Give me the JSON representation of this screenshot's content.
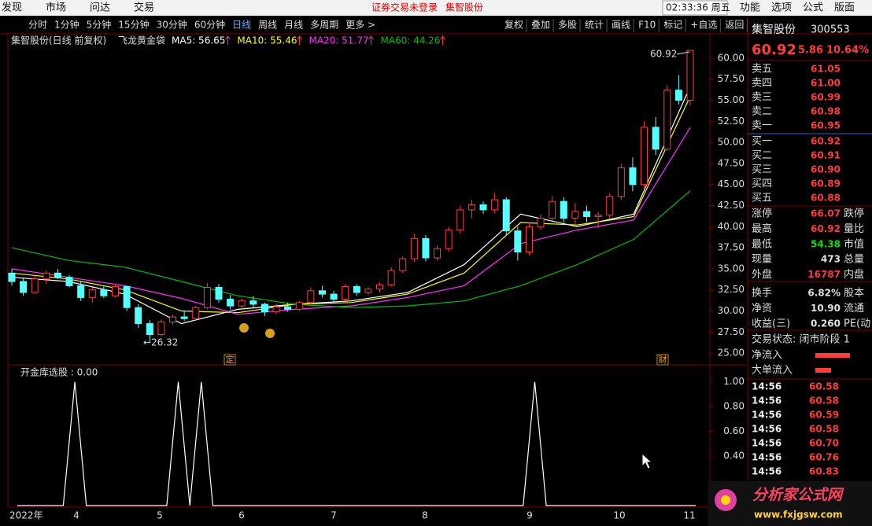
{
  "menu": {
    "left": [
      "发现",
      "市场",
      "问达",
      "交易"
    ],
    "notice": "证券交易未登录",
    "stock": "集智股份",
    "clock": "02:33:36 周五",
    "right": [
      "功能",
      "选项",
      "公式",
      "版面"
    ]
  },
  "toolbar": {
    "periods": [
      "分时",
      "1分钟",
      "5分钟",
      "15分钟",
      "30分钟",
      "60分钟",
      "日线",
      "周线",
      "月线",
      "多周期",
      "更多 >"
    ],
    "buttons": [
      "复权",
      "叠加",
      "多股",
      "统计",
      "画线",
      "F10",
      "标记",
      "+自选",
      "返回"
    ]
  },
  "chart_data": {
    "type": "candlestick",
    "title": "集智股份(日线 前复权)",
    "indicator": "飞龙黄金袋",
    "ylim": [
      23.8,
      61.3
    ],
    "yticks": [
      {
        "value": 60,
        "label": "60.00"
      },
      {
        "value": 57.5,
        "label": "57.50"
      },
      {
        "value": 55,
        "label": "55.00"
      },
      {
        "value": 52.5,
        "label": "52.50"
      },
      {
        "value": 50,
        "label": "50.00"
      },
      {
        "value": 47.5,
        "label": "47.50"
      },
      {
        "value": 45,
        "label": "45.00"
      },
      {
        "value": 42.5,
        "label": "42.50"
      },
      {
        "value": 40,
        "label": "40.00"
      },
      {
        "value": 37.5,
        "label": "37.50"
      },
      {
        "value": 35,
        "label": "35.00"
      },
      {
        "value": 32.5,
        "label": "32.50"
      },
      {
        "value": 30,
        "label": "30.00"
      },
      {
        "value": 27.5,
        "label": "27.50"
      },
      {
        "value": 25,
        "label": "25.00"
      }
    ],
    "x_labels": [
      "2022年",
      "4",
      "5",
      "6",
      "7",
      "8",
      "9",
      "10",
      "11"
    ],
    "up_color": "#ff3c3c",
    "down_color": "#54ffff",
    "candles": [
      [
        34.5,
        35.0,
        33.0,
        33.5
      ],
      [
        33.5,
        34.0,
        31.8,
        32.2
      ],
      [
        32.2,
        34.2,
        32.0,
        33.8
      ],
      [
        33.8,
        34.8,
        33.2,
        34.5
      ],
      [
        34.5,
        35.0,
        33.8,
        34.0
      ],
      [
        34.0,
        34.3,
        32.8,
        33.0
      ],
      [
        33.0,
        33.5,
        31.2,
        31.6
      ],
      [
        31.6,
        32.8,
        31.0,
        32.5
      ],
      [
        32.5,
        33.0,
        31.5,
        31.8
      ],
      [
        31.8,
        33.2,
        31.6,
        32.9
      ],
      [
        32.9,
        33.0,
        30.0,
        30.4
      ],
      [
        30.4,
        30.8,
        28.0,
        28.5
      ],
      [
        28.5,
        28.9,
        26.32,
        27.2
      ],
      [
        27.2,
        29.0,
        27.0,
        28.7
      ],
      [
        28.7,
        29.6,
        28.4,
        29.3
      ],
      [
        29.3,
        30.0,
        28.8,
        29.1
      ],
      [
        29.1,
        30.6,
        28.9,
        30.4
      ],
      [
        30.4,
        33.3,
        30.2,
        32.8
      ],
      [
        32.8,
        33.2,
        31.0,
        31.4
      ],
      [
        31.4,
        31.9,
        30.2,
        30.6
      ],
      [
        30.6,
        31.5,
        30.1,
        31.2
      ],
      [
        31.2,
        31.8,
        30.4,
        30.8
      ],
      [
        30.8,
        31.0,
        29.4,
        29.9
      ],
      [
        29.9,
        30.9,
        29.6,
        30.5
      ],
      [
        30.5,
        31.0,
        29.9,
        30.2
      ],
      [
        30.2,
        31.2,
        30.0,
        31.0
      ],
      [
        31.0,
        32.8,
        30.8,
        32.4
      ],
      [
        32.4,
        33.0,
        31.6,
        32.0
      ],
      [
        32.0,
        32.4,
        31.0,
        31.4
      ],
      [
        31.4,
        33.2,
        31.2,
        32.9
      ],
      [
        32.9,
        33.2,
        31.8,
        32.2
      ],
      [
        32.2,
        32.8,
        31.9,
        32.6
      ],
      [
        32.6,
        33.4,
        32.2,
        33.1
      ],
      [
        33.1,
        35.2,
        32.9,
        34.8
      ],
      [
        34.8,
        36.5,
        34.5,
        36.2
      ],
      [
        36.2,
        39.2,
        35.8,
        38.6
      ],
      [
        38.6,
        39.0,
        35.9,
        36.3
      ],
      [
        36.3,
        37.8,
        36.0,
        37.4
      ],
      [
        37.4,
        40.0,
        37.0,
        39.6
      ],
      [
        39.6,
        42.5,
        39.2,
        42.0
      ],
      [
        42.0,
        43.2,
        41.0,
        42.6
      ],
      [
        42.6,
        43.0,
        41.5,
        42.0
      ],
      [
        42.0,
        44.0,
        41.6,
        43.2
      ],
      [
        43.2,
        43.5,
        39.0,
        39.5
      ],
      [
        39.5,
        40.0,
        36.0,
        37.0
      ],
      [
        37.0,
        40.5,
        36.6,
        40.0
      ],
      [
        40.0,
        41.5,
        39.6,
        41.0
      ],
      [
        41.0,
        43.6,
        40.7,
        43.0
      ],
      [
        43.0,
        43.5,
        40.5,
        41.0
      ],
      [
        41.0,
        42.8,
        40.2,
        41.8
      ],
      [
        41.8,
        42.5,
        40.5,
        41.2
      ],
      [
        41.2,
        41.8,
        39.8,
        41.4
      ],
      [
        41.4,
        44.0,
        41.0,
        43.6
      ],
      [
        43.6,
        47.5,
        43.2,
        47.0
      ],
      [
        47.0,
        48.2,
        44.2,
        45.0
      ],
      [
        45.0,
        52.5,
        44.6,
        51.8
      ],
      [
        51.8,
        53.0,
        48.5,
        49.2
      ],
      [
        49.2,
        56.8,
        49.0,
        56.2
      ],
      [
        56.2,
        58.0,
        54.5,
        55.0
      ],
      [
        55.0,
        60.92,
        54.38,
        60.92
      ]
    ],
    "series": [
      {
        "name": "MA5: 56.65",
        "color": "#ffffff",
        "values": [
          34.0,
          33.5,
          32.0,
          28.5,
          30.2,
          30.8,
          31.2,
          32.2,
          35.5,
          41.5,
          40.0,
          41.5,
          56.65
        ]
      },
      {
        "name": "MA10: 55.46",
        "color": "#ffff00",
        "values": [
          34.5,
          33.8,
          32.5,
          30.0,
          29.8,
          30.8,
          31.0,
          32.0,
          34.5,
          40.5,
          40.2,
          41.2,
          55.46
        ]
      },
      {
        "name": "MA20: 51.77",
        "color": "#ff30ff",
        "values": [
          35.0,
          34.0,
          33.0,
          31.5,
          29.6,
          30.2,
          30.6,
          31.6,
          33.0,
          38.0,
          39.6,
          40.8,
          51.77
        ]
      },
      {
        "name": "MA60: 44.26",
        "color": "#00c000",
        "values": [
          37.5,
          36.0,
          35.2,
          33.5,
          31.8,
          30.8,
          30.4,
          30.6,
          31.2,
          33.0,
          35.5,
          38.5,
          44.26
        ]
      }
    ],
    "high_label": "60.92",
    "low_label": "←26.32",
    "events": [
      "定",
      "财"
    ]
  },
  "indicator": {
    "title": "开金库选股 : 0.00",
    "ylim": [
      0,
      1.1
    ],
    "yticks": [
      {
        "value": 1,
        "label": "1.00"
      },
      {
        "value": 0.8,
        "label": "0.80"
      },
      {
        "value": 0.6,
        "label": "0.60"
      },
      {
        "value": 0.4,
        "label": "0.40"
      }
    ],
    "values": [
      0,
      0,
      0,
      0,
      0,
      1,
      0,
      0,
      0,
      0,
      0,
      0,
      0,
      0,
      1,
      0,
      1,
      0,
      0,
      0,
      0,
      0,
      0,
      0,
      0,
      0,
      0,
      0,
      0,
      0,
      0,
      0,
      0,
      0,
      0,
      0,
      0,
      0,
      0,
      0,
      0,
      0,
      0,
      0,
      0,
      1,
      0,
      0,
      0,
      0,
      0,
      0,
      0,
      0,
      0,
      0,
      0,
      0,
      0,
      0
    ]
  },
  "quote": {
    "name": "集智股份",
    "code": "300553",
    "price": "60.92",
    "change": "5.86",
    "pct": "10.64%",
    "asks": [
      [
        "卖五",
        "61.05"
      ],
      [
        "卖四",
        "61.00"
      ],
      [
        "卖三",
        "60.99"
      ],
      [
        "卖二",
        "60.98"
      ],
      [
        "卖一",
        "60.95"
      ]
    ],
    "bids": [
      [
        "买一",
        "60.92"
      ],
      [
        "买二",
        "60.91"
      ],
      [
        "买三",
        "60.90"
      ],
      [
        "买四",
        "60.89"
      ],
      [
        "买五",
        "60.88"
      ]
    ],
    "stats": [
      {
        "label": "涨停",
        "value": "66.07",
        "label2": "跌停",
        "color": "#ff3c3c"
      },
      {
        "label": "最高",
        "value": "60.92",
        "label2": "量比",
        "color": "#ff3c3c"
      },
      {
        "label": "最低",
        "value": "54.38",
        "label2": "市值",
        "color": "#00e000"
      },
      {
        "label": "现量",
        "value": "473",
        "label2": "总量",
        "color": "#e0e0e0"
      },
      {
        "label": "外盘",
        "value": "16787",
        "label2": "内盘",
        "color": "#ff3c3c"
      },
      {
        "label": "换手",
        "value": "6.82%",
        "label2": "股本",
        "color": "#e0e0e0"
      },
      {
        "label": "净资",
        "value": "10.90",
        "label2": "流通",
        "color": "#e0e0e0"
      },
      {
        "label": "收益(三)",
        "value": "0.260",
        "label2": "PE(动",
        "color": "#e0e0e0"
      }
    ],
    "status": "交易状态: 闭市阶段 1",
    "flows": [
      "净流入",
      "大单流入"
    ],
    "ticks": [
      [
        "14:56",
        "60.58"
      ],
      [
        "14:56",
        "60.58"
      ],
      [
        "14:56",
        "60.59"
      ],
      [
        "14:56",
        "60.58"
      ],
      [
        "14:56",
        "60.70"
      ],
      [
        "14:56",
        "60.76"
      ],
      [
        "14:56",
        "60.83"
      ]
    ]
  },
  "watermark": {
    "name": "分析家公式网",
    "url": "www.fxjgsw.com"
  }
}
